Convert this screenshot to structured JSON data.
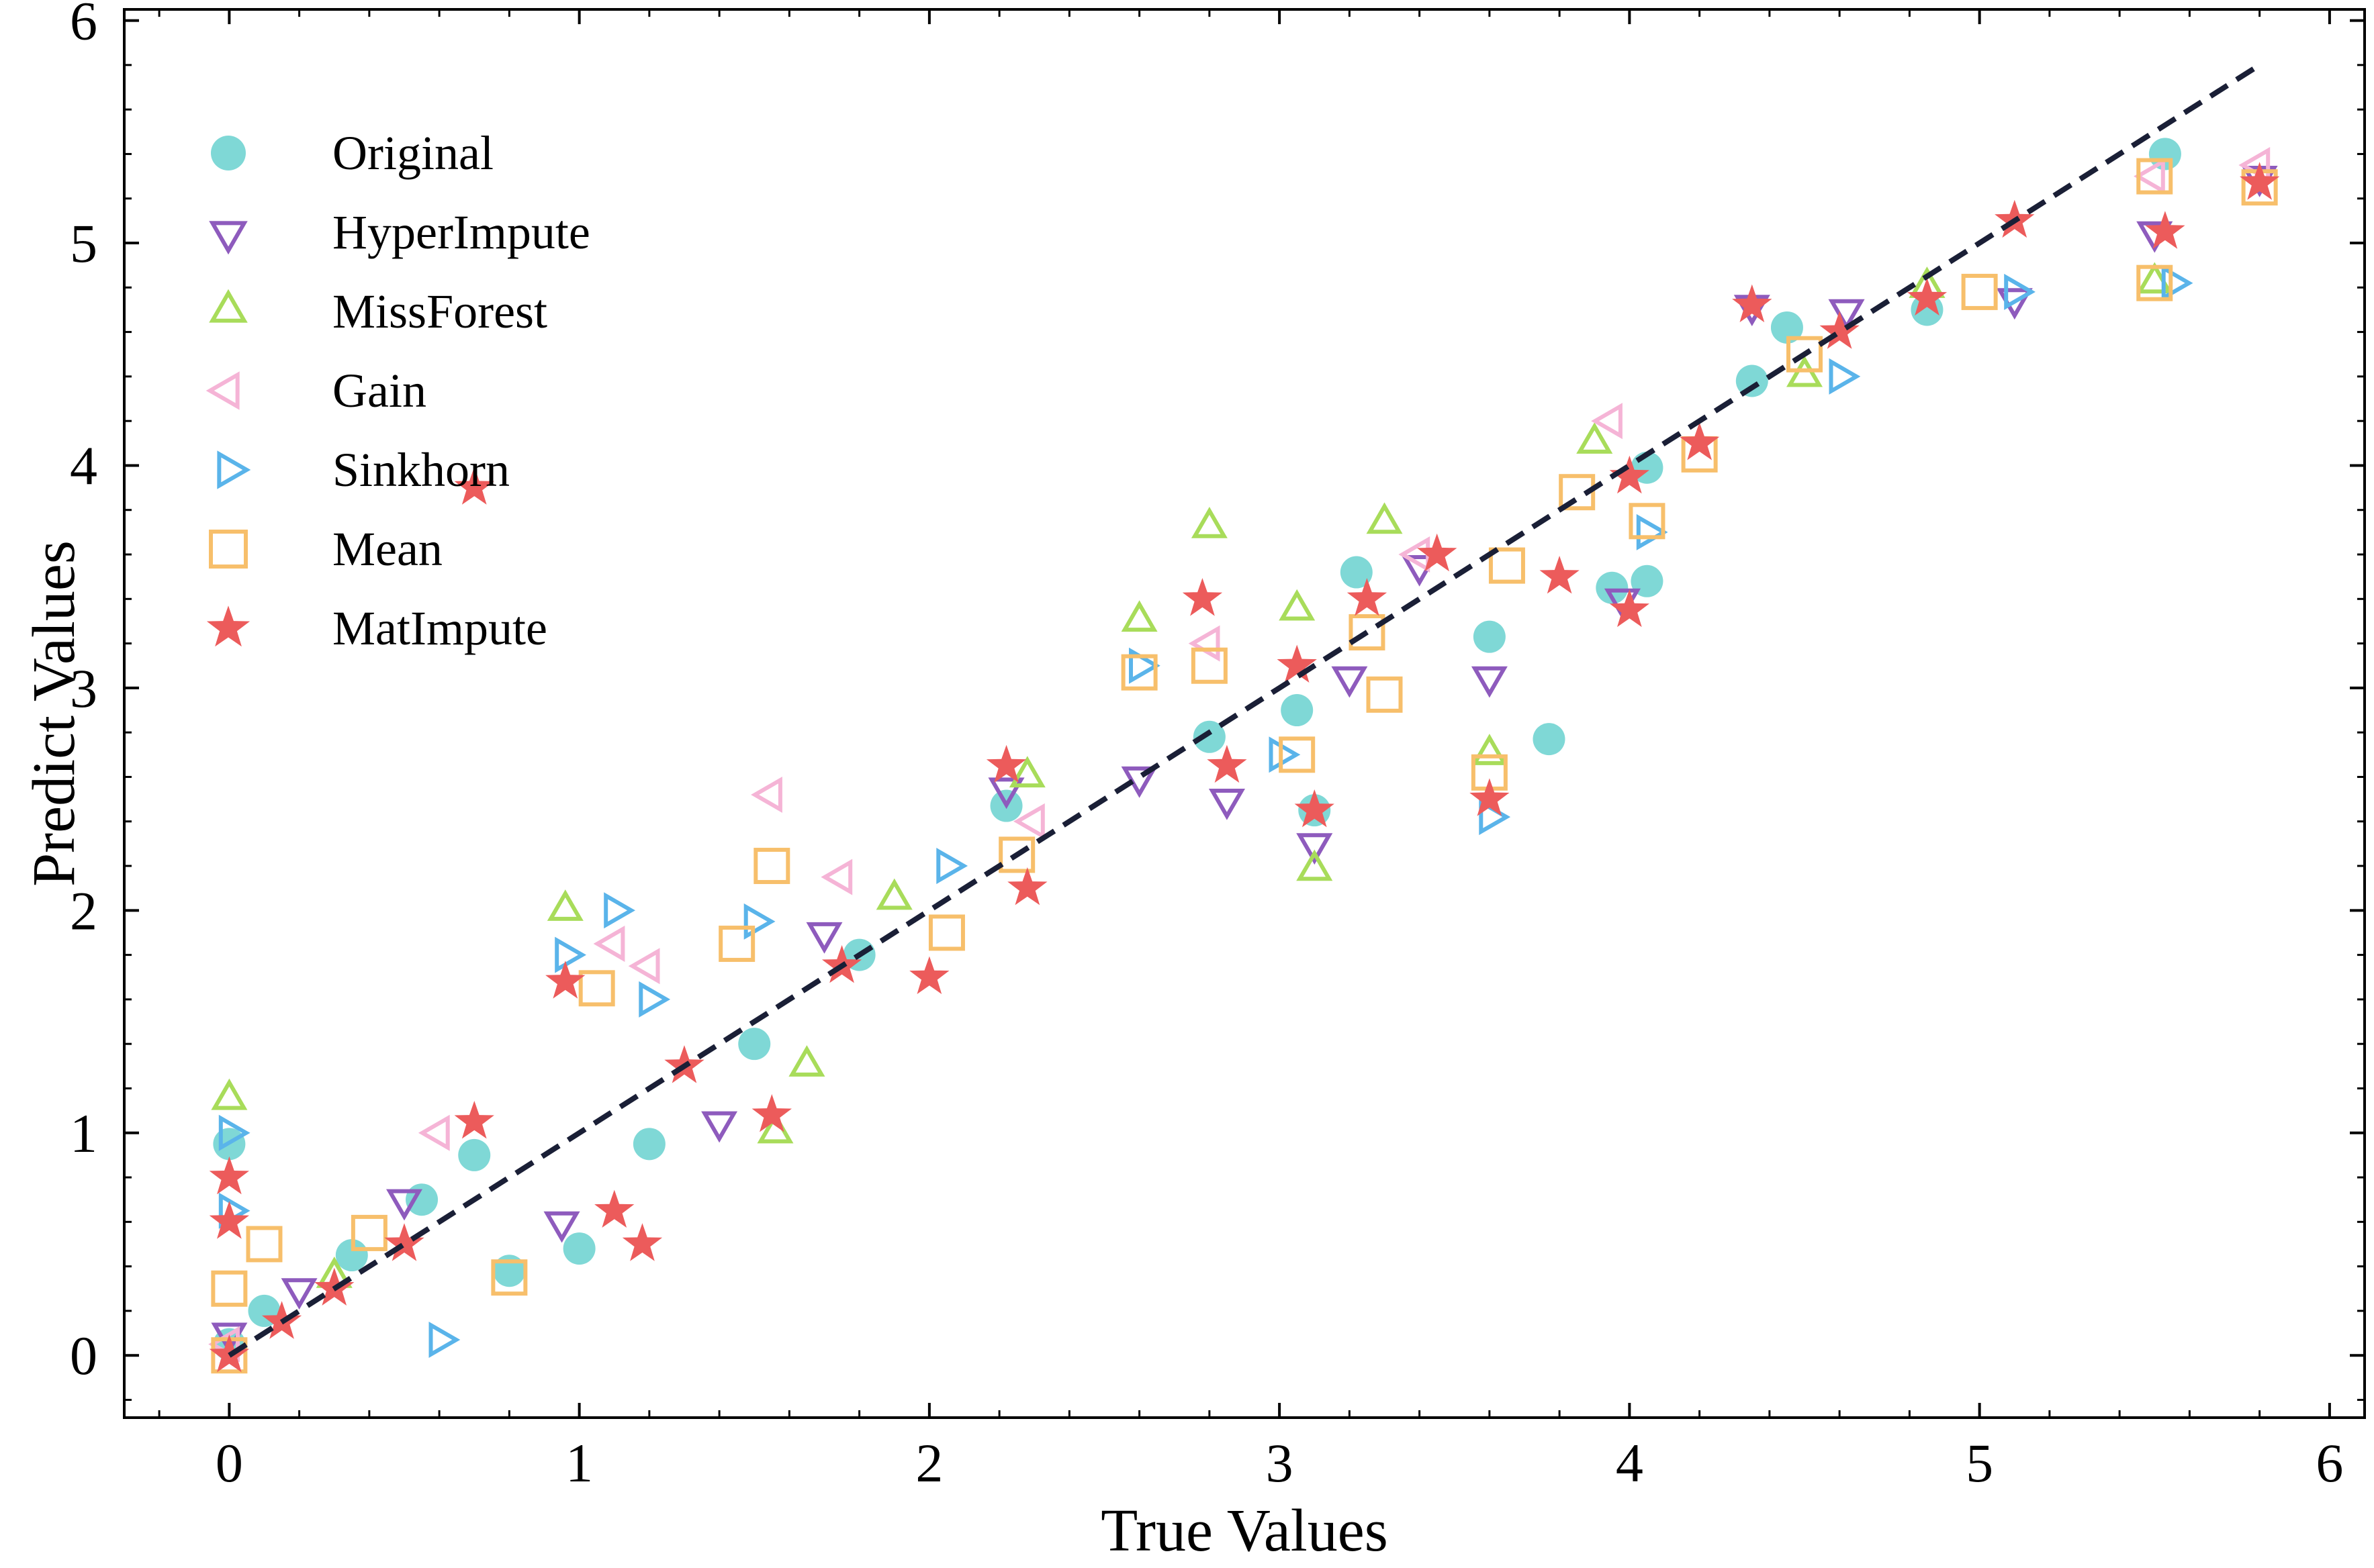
{
  "chart_data": {
    "type": "scatter",
    "title": "",
    "xlabel": "True Values",
    "ylabel": "Predict Values",
    "xlim": [
      -0.3,
      6.1
    ],
    "ylim": [
      -0.28,
      6.05
    ],
    "xticks": [
      "0",
      "1",
      "2",
      "3",
      "4",
      "5",
      "6"
    ],
    "yticks": [
      "0",
      "1",
      "2",
      "3",
      "4",
      "5",
      "6"
    ],
    "legend_position": "upper-left",
    "reference_line": {
      "style": "dashed",
      "color": "#1a1f36",
      "x": [
        0,
        5.8
      ],
      "y": [
        0,
        5.8
      ]
    },
    "series": [
      {
        "name": "Original",
        "marker": "circle",
        "color": "#7fd8d6",
        "points": [
          [
            0,
            0.05
          ],
          [
            0,
            0.95
          ],
          [
            0.1,
            0.2
          ],
          [
            0.35,
            0.45
          ],
          [
            0.55,
            0.7
          ],
          [
            0.8,
            0.38
          ],
          [
            1.0,
            0.48
          ],
          [
            0.7,
            0.9
          ],
          [
            1.2,
            0.95
          ],
          [
            1.5,
            1.4
          ],
          [
            1.8,
            1.8
          ],
          [
            2.22,
            2.47
          ],
          [
            2.8,
            2.78
          ],
          [
            3.05,
            2.9
          ],
          [
            3.1,
            2.45
          ],
          [
            3.22,
            3.52
          ],
          [
            3.6,
            3.23
          ],
          [
            3.77,
            2.77
          ],
          [
            3.95,
            3.45
          ],
          [
            4.05,
            3.48
          ],
          [
            4.05,
            3.99
          ],
          [
            4.35,
            4.38
          ],
          [
            4.45,
            4.62
          ],
          [
            4.85,
            4.7
          ],
          [
            5.53,
            5.4
          ]
        ]
      },
      {
        "name": "HyperImpute",
        "marker": "triangle-down",
        "color": "#8e5bbd",
        "points": [
          [
            0,
            0.1
          ],
          [
            0.2,
            0.3
          ],
          [
            0.5,
            0.7
          ],
          [
            0.95,
            0.6
          ],
          [
            1.4,
            1.05
          ],
          [
            1.7,
            1.9
          ],
          [
            2.22,
            2.55
          ],
          [
            2.6,
            2.6
          ],
          [
            2.85,
            2.5
          ],
          [
            3.1,
            2.3
          ],
          [
            3.2,
            3.05
          ],
          [
            3.6,
            3.05
          ],
          [
            3.4,
            3.55
          ],
          [
            3.98,
            3.4
          ],
          [
            4.35,
            4.72
          ],
          [
            4.62,
            4.7
          ],
          [
            5.1,
            4.75
          ],
          [
            5.5,
            5.05
          ],
          [
            5.8,
            5.3
          ]
        ]
      },
      {
        "name": "MissForest",
        "marker": "triangle-up",
        "color": "#a8dc5a",
        "points": [
          [
            0,
            1.15
          ],
          [
            0.3,
            0.35
          ],
          [
            0.96,
            2.0
          ],
          [
            1.56,
            1.0
          ],
          [
            1.65,
            1.3
          ],
          [
            1.9,
            2.05
          ],
          [
            2.28,
            2.6
          ],
          [
            2.6,
            3.3
          ],
          [
            2.8,
            3.72
          ],
          [
            3.05,
            3.35
          ],
          [
            3.1,
            2.18
          ],
          [
            3.3,
            3.74
          ],
          [
            3.6,
            2.7
          ],
          [
            3.9,
            4.1
          ],
          [
            4.5,
            4.4
          ],
          [
            4.85,
            4.8
          ],
          [
            5.5,
            4.82
          ]
        ]
      },
      {
        "name": "Gain",
        "marker": "triangle-right",
        "color": "#f5b4d6",
        "points": [
          [
            0,
            0.05
          ],
          [
            0.6,
            1.0
          ],
          [
            1.1,
            1.85
          ],
          [
            1.2,
            1.75
          ],
          [
            1.55,
            2.52
          ],
          [
            1.75,
            2.15
          ],
          [
            2.3,
            2.4
          ],
          [
            2.8,
            3.2
          ],
          [
            3.4,
            3.6
          ],
          [
            3.95,
            4.2
          ],
          [
            5.5,
            5.3
          ],
          [
            5.8,
            5.35
          ]
        ]
      },
      {
        "name": "Sinkhorn",
        "marker": "triangle-left",
        "color": "#5ab4ea",
        "points": [
          [
            0,
            0.65
          ],
          [
            0,
            1.0
          ],
          [
            0.6,
            0.07
          ],
          [
            0.96,
            1.8
          ],
          [
            1.1,
            2.0
          ],
          [
            1.2,
            1.6
          ],
          [
            1.5,
            1.95
          ],
          [
            2.05,
            2.2
          ],
          [
            2.6,
            3.1
          ],
          [
            3.0,
            2.7
          ],
          [
            3.6,
            2.42
          ],
          [
            4.05,
            3.7
          ],
          [
            4.6,
            4.4
          ],
          [
            5.1,
            4.78
          ],
          [
            5.55,
            4.82
          ]
        ]
      },
      {
        "name": "Mean",
        "marker": "square",
        "color": "#f7bf6b",
        "points": [
          [
            0,
            0.0
          ],
          [
            0,
            0.3
          ],
          [
            0.1,
            0.5
          ],
          [
            0.4,
            0.55
          ],
          [
            0.8,
            0.35
          ],
          [
            1.05,
            1.65
          ],
          [
            1.55,
            2.2
          ],
          [
            1.45,
            1.85
          ],
          [
            2.05,
            1.9
          ],
          [
            2.25,
            2.25
          ],
          [
            2.6,
            3.07
          ],
          [
            2.8,
            3.1
          ],
          [
            3.05,
            2.7
          ],
          [
            3.25,
            3.25
          ],
          [
            3.3,
            2.97
          ],
          [
            3.6,
            2.62
          ],
          [
            3.65,
            3.55
          ],
          [
            3.85,
            3.88
          ],
          [
            4.05,
            3.75
          ],
          [
            4.2,
            4.05
          ],
          [
            4.5,
            4.5
          ],
          [
            5.0,
            4.78
          ],
          [
            5.5,
            4.82
          ],
          [
            5.5,
            5.3
          ],
          [
            5.8,
            5.25
          ]
        ]
      },
      {
        "name": "MatImpute",
        "marker": "star",
        "color": "#ec5b5b",
        "points": [
          [
            0,
            0.0
          ],
          [
            0,
            0.6
          ],
          [
            0,
            0.8
          ],
          [
            0.15,
            0.15
          ],
          [
            0.3,
            0.3
          ],
          [
            0.5,
            0.5
          ],
          [
            0.7,
            3.9
          ],
          [
            0.7,
            1.05
          ],
          [
            0.96,
            1.68
          ],
          [
            1.1,
            0.65
          ],
          [
            1.18,
            0.5
          ],
          [
            1.3,
            1.3
          ],
          [
            1.55,
            1.08
          ],
          [
            1.75,
            1.75
          ],
          [
            2.0,
            1.7
          ],
          [
            2.22,
            2.65
          ],
          [
            2.28,
            2.1
          ],
          [
            2.78,
            3.4
          ],
          [
            2.85,
            2.65
          ],
          [
            3.05,
            3.1
          ],
          [
            3.1,
            2.45
          ],
          [
            3.25,
            3.4
          ],
          [
            3.45,
            3.6
          ],
          [
            3.6,
            2.5
          ],
          [
            3.8,
            3.5
          ],
          [
            4.0,
            3.35
          ],
          [
            4.0,
            3.95
          ],
          [
            4.2,
            4.1
          ],
          [
            4.35,
            4.72
          ],
          [
            4.6,
            4.6
          ],
          [
            4.85,
            4.75
          ],
          [
            5.1,
            5.1
          ],
          [
            5.53,
            5.05
          ],
          [
            5.8,
            5.27
          ]
        ]
      }
    ]
  }
}
